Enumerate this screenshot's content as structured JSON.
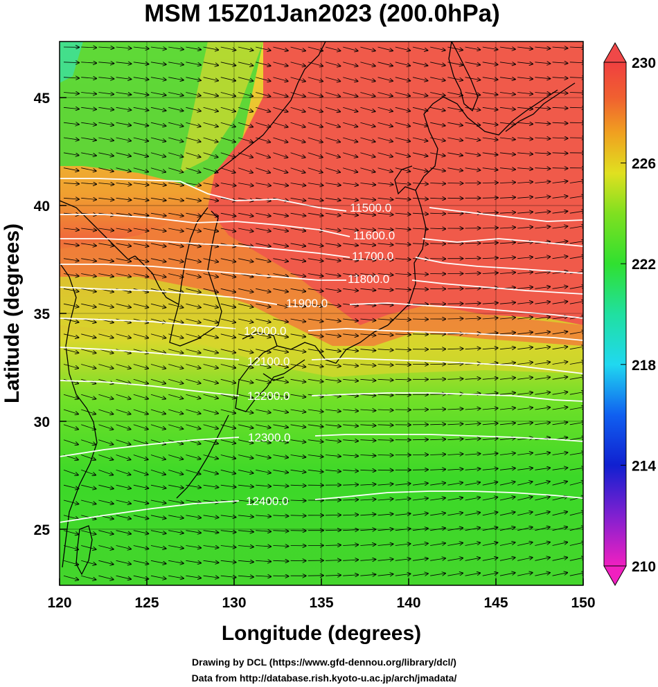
{
  "figure": {
    "title": "MSM 15Z01Jan2023 (200.0hPa)",
    "xlabel": "Longitude (degrees)",
    "ylabel": "Latitude  (degrees)",
    "credit_line1": "Drawing by DCL (https://www.gfd-dennou.org/library/dcl/)",
    "credit_line2": "Data from http://database.rish.kyoto-u.ac.jp/arch/jmadata/"
  },
  "map": {
    "lon_range": [
      120,
      150
    ],
    "lat_range": [
      22.4,
      47.6
    ],
    "x_ticks": [
      "120",
      "125",
      "130",
      "135",
      "140",
      "145",
      "150"
    ],
    "y_ticks": [
      "25",
      "30",
      "35",
      "40",
      "45"
    ],
    "contour_labels": [
      "11500.0",
      "11600.0",
      "11700.0",
      "11800.0",
      "11900.0",
      "12000.0",
      "12100.0",
      "12200.0",
      "12300.0",
      "12400.0"
    ],
    "colorbar_ticks": [
      "230",
      "226",
      "222",
      "218",
      "214",
      "210"
    ],
    "colorbar_range": [
      210,
      230
    ],
    "fill_colors": {
      "red": "#f05a4a",
      "orange": "#f08a30",
      "yellow": "#d8e030",
      "green": "#38d82c",
      "cyan": "#20e0c0",
      "blue": "#1040e0",
      "magenta": "#f020c0"
    },
    "contour_color": "#ffffff",
    "vector_color": "#000000"
  }
}
